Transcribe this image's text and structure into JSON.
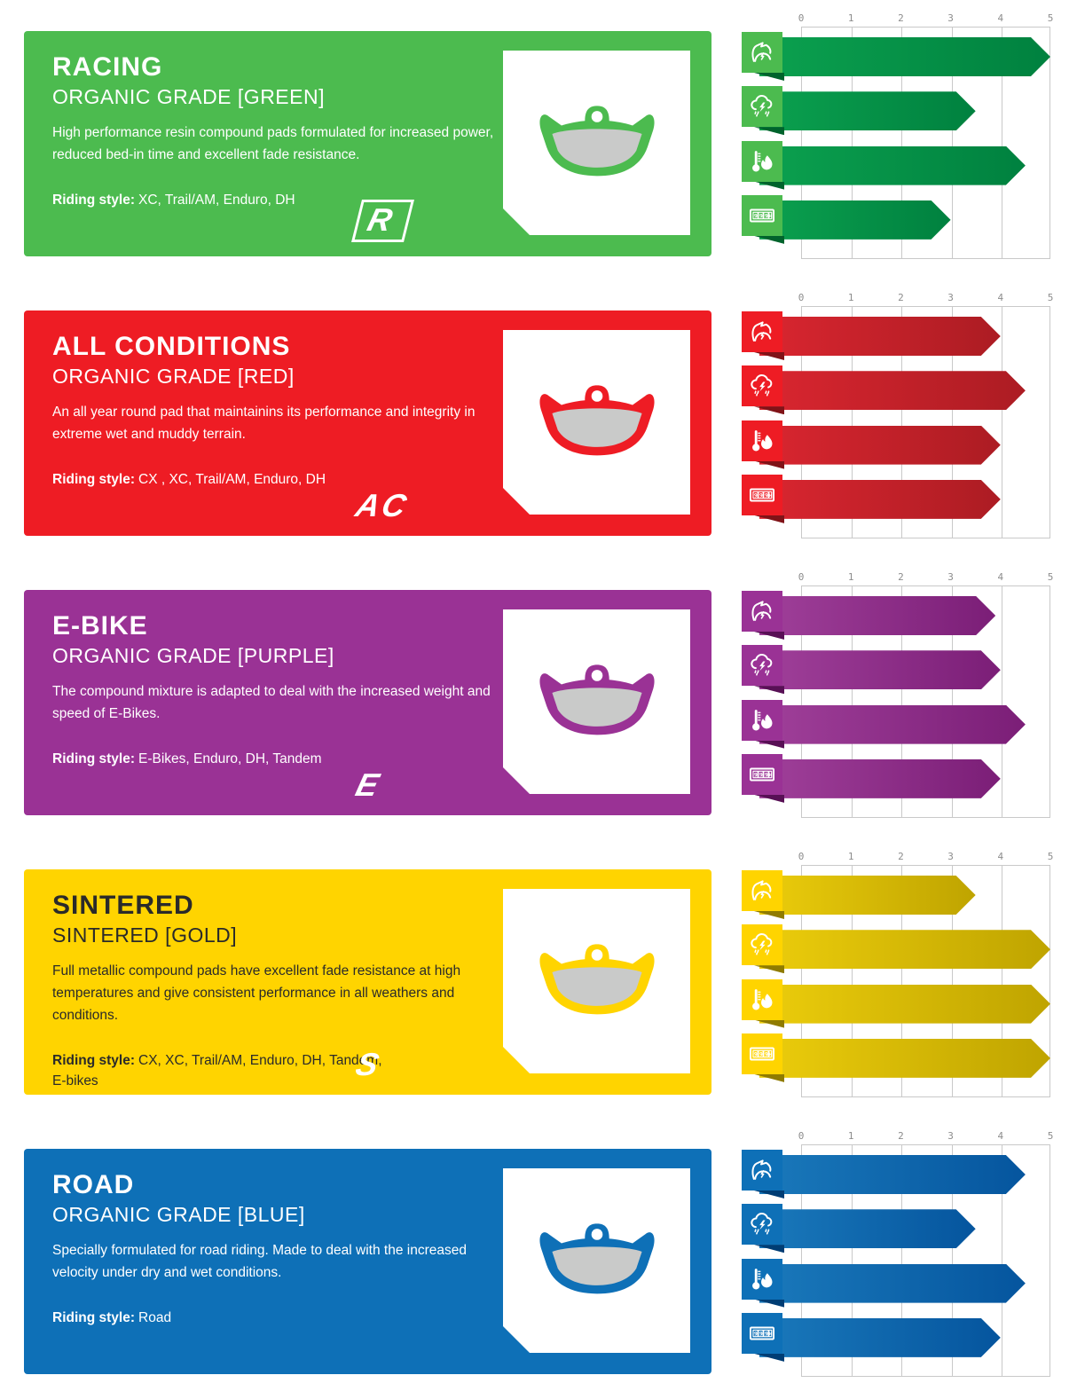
{
  "axis": {
    "ticks": [
      "0",
      "1",
      "2",
      "3",
      "4",
      "5"
    ]
  },
  "metrics": [
    {
      "id": "power",
      "label": "power",
      "icon": "bicep-power-icon"
    },
    {
      "id": "wet_performance",
      "label": "wet performance",
      "icon": "storm-cloud-icon"
    },
    {
      "id": "heat_fade_resistance",
      "label": "heat / fade resistance",
      "icon": "thermometer-flame-icon"
    },
    {
      "id": "durability",
      "label": "pad life / durability",
      "icon": "odometer-999-icon"
    }
  ],
  "products": [
    {
      "title": "RACING",
      "subtitle": "ORGANIC GRADE [GREEN]",
      "description": "High performance resin compound pads formulated for increased power, reduced bed-in time and excellent fade resistance.",
      "riding_style_label": "Riding style:",
      "riding_style": "XC, Trail/AM, Enduro, DH",
      "logo": "R",
      "colors": {
        "bg": "#4cbb4f",
        "text": "#ffffff",
        "bar_from": "#0ba14f",
        "bar_to": "#00813f",
        "fold": "#00632c"
      }
    },
    {
      "title": "ALL CONDITIONS",
      "subtitle": "ORGANIC GRADE [RED]",
      "description": "An all year round pad that maintainins its performance and integrity in extreme wet and muddy terrain.",
      "riding_style_label": "Riding style:",
      "riding_style": "CX , XC, Trail/AM, Enduro, DH",
      "logo": "AC",
      "colors": {
        "bg": "#ee1c24",
        "text": "#ffffff",
        "bar_from": "#da2630",
        "bar_to": "#ac1c23",
        "fold": "#801318"
      }
    },
    {
      "title": "E-BIKE",
      "subtitle": "ORGANIC GRADE [PURPLE]",
      "description": "The compound mixture is adapted to deal with the increased weight and speed of E-Bikes.",
      "riding_style_label": "Riding style:",
      "riding_style": "E-Bikes, Enduro, DH, Tandem",
      "logo": "E",
      "colors": {
        "bg": "#9a3295",
        "text": "#ffffff",
        "bar_from": "#a0409a",
        "bar_to": "#7b1e77",
        "fold": "#581055"
      }
    },
    {
      "title": "SINTERED",
      "subtitle": "SINTERED [GOLD]",
      "description": "Full metallic compound pads have excellent fade resistance at high temperatures and give consistent performance in all weathers and conditions.",
      "riding_style_label": "Riding style:",
      "riding_style": "CX, XC, Trail/AM, Enduro, DH, Tandem, E-bikes",
      "logo": "S",
      "colors": {
        "bg": "#ffd400",
        "text": "#2a2a2a",
        "bar_from": "#eccd0c",
        "bar_to": "#bfa400",
        "fold": "#8f7b00"
      }
    },
    {
      "title": "ROAD",
      "subtitle": "ORGANIC GRADE [BLUE]",
      "description": "Specially formulated for road riding. Made to deal with the increased velocity under dry and wet conditions.",
      "riding_style_label": "Riding style:",
      "riding_style": "Road",
      "logo": "",
      "colors": {
        "bg": "#0e70b7",
        "text": "#ffffff",
        "bar_from": "#1a79bb",
        "bar_to": "#05559e",
        "fold": "#003d74"
      }
    }
  ],
  "chart_data": [
    {
      "type": "bar",
      "orientation": "horizontal",
      "title": "RACING — ORGANIC GRADE [GREEN]",
      "categories": [
        "power",
        "wet performance",
        "heat / fade resistance",
        "pad life / durability"
      ],
      "values": [
        5,
        3.5,
        4.5,
        3
      ],
      "xlim": [
        0,
        5
      ],
      "tick_labels": [
        "0",
        "1",
        "2",
        "3",
        "4",
        "5"
      ],
      "grid": true,
      "bar_color": "#00a14b"
    },
    {
      "type": "bar",
      "orientation": "horizontal",
      "title": "ALL CONDITIONS — ORGANIC GRADE [RED]",
      "categories": [
        "power",
        "wet performance",
        "heat / fade resistance",
        "pad life / durability"
      ],
      "values": [
        4,
        4.5,
        4,
        4
      ],
      "xlim": [
        0,
        5
      ],
      "tick_labels": [
        "0",
        "1",
        "2",
        "3",
        "4",
        "5"
      ],
      "grid": true,
      "bar_color": "#c92129"
    },
    {
      "type": "bar",
      "orientation": "horizontal",
      "title": "E-BIKE — ORGANIC GRADE [PURPLE]",
      "categories": [
        "power",
        "wet performance",
        "heat / fade resistance",
        "pad life / durability"
      ],
      "values": [
        3.9,
        4,
        4.5,
        4
      ],
      "xlim": [
        0,
        5
      ],
      "tick_labels": [
        "0",
        "1",
        "2",
        "3",
        "4",
        "5"
      ],
      "grid": true,
      "bar_color": "#8c2d87"
    },
    {
      "type": "bar",
      "orientation": "horizontal",
      "title": "SINTERED — SINTERED [GOLD]",
      "categories": [
        "power",
        "wet performance",
        "heat / fade resistance",
        "pad life / durability"
      ],
      "values": [
        3.5,
        5,
        5,
        5
      ],
      "xlim": [
        0,
        5
      ],
      "tick_labels": [
        "0",
        "1",
        "2",
        "3",
        "4",
        "5"
      ],
      "grid": true,
      "bar_color": "#d8ba06"
    },
    {
      "type": "bar",
      "orientation": "horizontal",
      "title": "ROAD — ORGANIC GRADE [BLUE]",
      "categories": [
        "power",
        "wet performance",
        "heat / fade resistance",
        "pad life / durability"
      ],
      "values": [
        4.5,
        3.5,
        4.5,
        4
      ],
      "xlim": [
        0,
        5
      ],
      "tick_labels": [
        "0",
        "1",
        "2",
        "3",
        "4",
        "5"
      ],
      "grid": true,
      "bar_color": "#0f66ab"
    }
  ]
}
